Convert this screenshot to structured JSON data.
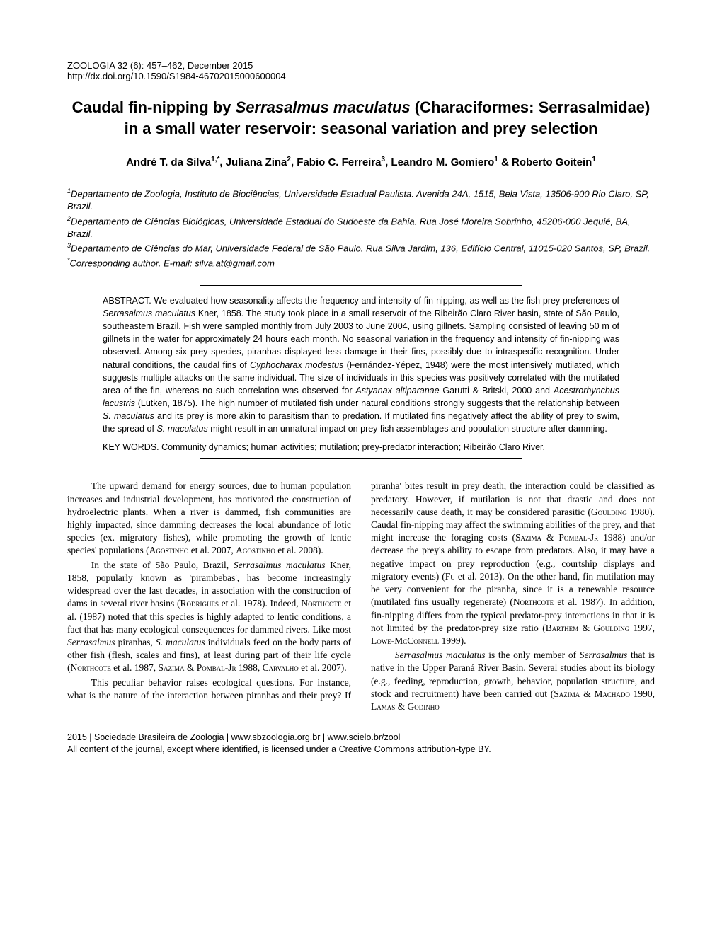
{
  "header": {
    "journal_line": "ZOOLOGIA 32 (6): 457–462, December 2015",
    "doi_line": "http://dx.doi.org/10.1590/S1984-46702015000600004"
  },
  "title_parts": {
    "t1": "Caudal fin-nipping by ",
    "t2_italic": "Serrasalmus maculatus",
    "t3": " (Characiformes: Serrasalmidae) in a small water reservoir: seasonal variation and prey selection"
  },
  "authors_parts": {
    "a1": "André T. da Silva",
    "s1": "1,*",
    "sep1": ", Juliana Zina",
    "s2": "2",
    "sep2": ", Fabio C. Ferreira",
    "s3": "3",
    "sep3": ", Leandro M. Gomiero",
    "s4": "1",
    "sep4": " & Roberto Goitein",
    "s5": "1"
  },
  "affiliations": {
    "a1_sup": "1",
    "a1": "Departamento de Zoologia, Instituto de Biociências, Universidade Estadual Paulista. Avenida 24A, 1515, Bela Vista, 13506-900 Rio Claro, SP, Brazil.",
    "a2_sup": "2",
    "a2": "Departamento de Ciências Biológicas, Universidade Estadual do Sudoeste da Bahia. Rua José Moreira Sobrinho, 45206-000 Jequié, BA, Brazil.",
    "a3_sup": "3",
    "a3": "Departamento de Ciências do Mar, Universidade Federal de São Paulo. Rua Silva Jardim, 136, Edifício Central, 11015-020 Santos, SP, Brazil.",
    "corr_sup": "*",
    "corr": "Corresponding author. E-mail: silva.at@gmail.com"
  },
  "abstract": {
    "label": "ABSTRACT. ",
    "p1a": "We evaluated how seasonality affects the frequency and intensity of fin-nipping, as well as the fish prey preferences of ",
    "p1b_italic": "Serrasalmus maculatus",
    "p1c": " Kner, 1858. The study took place in a small reservoir of the Ribeirão Claro River basin, state of São Paulo, southeastern Brazil. Fish were sampled monthly from July 2003 to June 2004, using gillnets. Sampling consisted of leaving 50 m of gillnets in the water for approximately 24 hours each month. No seasonal variation in the frequency and intensity of fin-nipping was observed. Among six prey species, piranhas displayed less damage in their fins, possibly due to intraspecific recognition. Under natural conditions, the caudal fins of ",
    "p1d_italic": "Cyphocharax modestus",
    "p1e": " (Fernández-Yépez, 1948) were the most intensively mutilated, which suggests multiple attacks on the same individual. The size of individuals in this species was positively correlated with the mutilated area of the fin, whereas no such correlation was observed for ",
    "p1f_italic": "Astyanax altiparanae",
    "p1g": " Garutti & Britski, 2000 and ",
    "p1h_italic": "Acestrorhynchus lacustris",
    "p1i": " (Lütken, 1875). The high number of mutilated fish under natural conditions strongly suggests that the relationship between ",
    "p1j_italic": "S. maculatus",
    "p1k": " and its prey is more akin to parasitism than to predation. If mutilated fins negatively affect the ability of prey to swim, the spread of ",
    "p1l_italic": "S. maculatus",
    "p1m": " might result in an unnatural impact on prey fish assemblages and population structure after damming."
  },
  "keywords": {
    "label": "KEY WORDS. ",
    "text": "Community dynamics; human activities; mutilation; prey-predator interaction; Ribeirão Claro River."
  },
  "body": {
    "p1a": "The upward demand for energy sources, due to human population increases and industrial development, has motivated the construction of hydroelectric plants. When a river is dammed, fish communities are highly impacted, since damming decreases the local abundance of lotic species (ex. migratory fishes), while promoting the growth of lentic species' populations (",
    "p1b_sc": "Agostinho",
    "p1c": " et al. 2007, ",
    "p1d_sc": "Agostinho",
    "p1e": " et al. 2008).",
    "p2a": "In the state of São Paulo, Brazil, ",
    "p2b_italic": "Serrasalmus maculatus",
    "p2c": " Kner, 1858, popularly known as 'pirambebas', has become increasingly widespread over the last decades, in association with the construction of dams in several river basins (",
    "p2d_sc": "Rodrigues",
    "p2e": " et al. 1978). Indeed, ",
    "p2f_sc": "Northcote",
    "p2g": " et al. (1987) noted that this species is highly adapted to lentic conditions, a fact that has many ecological consequences for dammed rivers. Like most ",
    "p2h_italic": "Serrasalmus",
    "p2i": " piranhas, ",
    "p2j_italic": "S. maculatus",
    "p2k": " individuals feed on the body parts of other fish (flesh, scales and fins), at least during part of their life cycle (",
    "p2l_sc": "Northcote",
    "p2m": " et al. 1987, ",
    "p2n_sc": "Sazima & Pombal-Jr",
    "p2o": " 1988, ",
    "p2p_sc": "Carvalho",
    "p2q": " et al. 2007).",
    "p3a": "This peculiar behavior raises ecological questions. For instance, what is the nature of the interaction between pira",
    "p4a": "nhas and their prey? If piranha' bites result in prey death, the interaction could be classified as predatory. However, if mutilation is not that drastic and does not necessarily cause death, it may be considered parasitic (",
    "p4b_sc": "Goulding",
    "p4c": " 1980). Caudal fin-nipping may affect the swimming abilities of the prey, and that might increase the foraging costs (",
    "p4d_sc": "Sazima & Pombal-Jr",
    "p4e": " 1988) and/or decrease the prey's ability to escape from predators. Also, it may have a negative impact on prey reproduction (e.g., courtship displays and migratory events) (",
    "p4f_sc": "Fu",
    "p4g": " et al. 2013). On the other hand, fin mutilation may be very convenient for the piranha, since it is a renewable resource (mutilated fins usually regenerate) (",
    "p4h_sc": "Northcote",
    "p4i": " et al. 1987). In addition, fin-nipping differs from the typical predator-prey interactions in that it is not limited by the predator-prey size ratio (",
    "p4j_sc": "Barthem & Goulding",
    "p4k": " 1997, ",
    "p4l_sc": "Lowe-McConnell",
    "p4m": " 1999).",
    "p5a_italic": "Serrasalmus maculatus",
    "p5b": " is the only member of ",
    "p5c_italic": "Serrasalmus",
    "p5d": " that is native in the Upper Paraná River Basin. Several studies about its biology (e.g., feeding, reproduction, growth, behavior, population structure, and stock and recruitment) have been carried out (",
    "p5e_sc": "Sazima & Machado",
    "p5f": " 1990, ",
    "p5g_sc": "Lamas & Godinho"
  },
  "footer": {
    "l1": "2015 | Sociedade Brasileira de Zoologia | www.sbzoologia.org.br | www.scielo.br/zool",
    "l2": "All content of the journal, except where identified, is licensed under a Creative Commons attribution-type BY."
  }
}
